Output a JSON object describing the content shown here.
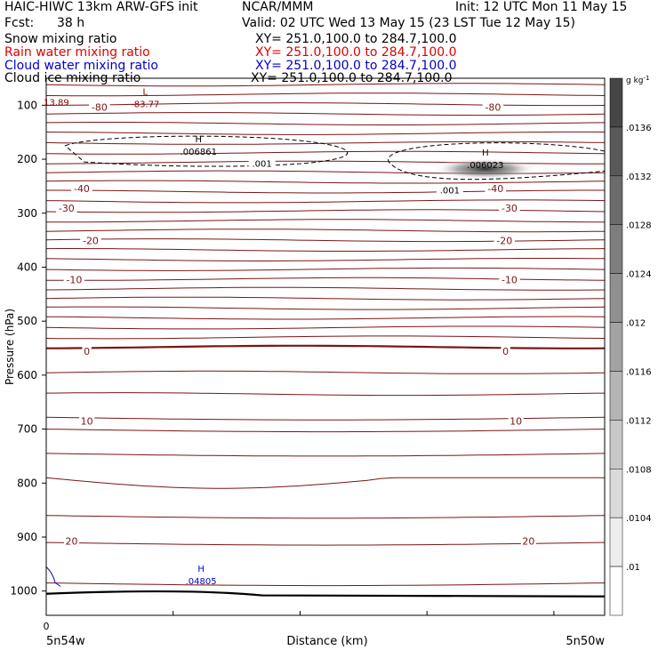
{
  "header": {
    "model": "HAIC-HIWC 13km ARW-GFS init",
    "center": "NCAR/MMM",
    "init": "Init: 12 UTC Mon 11 May 15",
    "fcst_label": "Fcst:",
    "fcst_value": "38 h",
    "valid": "Valid: 02 UTC Wed 13 May 15 (23 LST Tue 12 May 15)",
    "fields": [
      {
        "name": "Snow mixing ratio",
        "xy": "XY= 251.0,100.0 to 284.7,100.0",
        "color": "#000000"
      },
      {
        "name": "Rain water mixing ratio",
        "xy": "XY= 251.0,100.0 to 284.7,100.0",
        "color": "#dd0000"
      },
      {
        "name": "Cloud water mixing ratio",
        "xy": "XY= 251.0,100.0 to 284.7,100.0",
        "color": "#0000cc"
      },
      {
        "name": "Cloud ice mixing ratio",
        "xy": "XY= 251.0,100.0 to 284.7,100.0",
        "color": "#000000"
      }
    ]
  },
  "chart_data": {
    "type": "contour",
    "ylabel": "Pressure (hPa)",
    "xlabel": "Distance (km)",
    "x_left_label": "5n54w",
    "x_right_label": "5n50w",
    "x_zero_label": "0",
    "y_ticks": [
      100,
      200,
      300,
      400,
      500,
      600,
      700,
      800,
      900,
      1000
    ],
    "y_range": [
      50,
      1045
    ],
    "x_range": [
      0,
      4.4
    ],
    "x_ticks": [
      0,
      1,
      2,
      3,
      4
    ],
    "colorbar": {
      "unit": "g kg",
      "unit_sup": "-1",
      "labels": [
        ".0136",
        ".0132",
        ".0128",
        ".0124",
        ".012",
        ".0116",
        ".0112",
        ".0108",
        ".0104",
        ".01"
      ]
    },
    "temperature_contour_labels": [
      {
        "value": "-80",
        "x": 0.42,
        "p": 105
      },
      {
        "value": "-80",
        "x": 3.52,
        "p": 105
      },
      {
        "value": "-40",
        "x": 0.28,
        "p": 256
      },
      {
        "value": "-40",
        "x": 3.54,
        "p": 256
      },
      {
        "value": "-30",
        "x": 0.16,
        "p": 292
      },
      {
        "value": "-30",
        "x": 3.65,
        "p": 292
      },
      {
        "value": "-20",
        "x": 0.35,
        "p": 352
      },
      {
        "value": "-20",
        "x": 3.61,
        "p": 352
      },
      {
        "value": "-10",
        "x": 0.22,
        "p": 425
      },
      {
        "value": "-10",
        "x": 3.65,
        "p": 425
      },
      {
        "value": "0",
        "x": 0.32,
        "p": 557
      },
      {
        "value": "0",
        "x": 3.62,
        "p": 557
      },
      {
        "value": "10",
        "x": 0.32,
        "p": 687
      },
      {
        "value": "10",
        "x": 3.7,
        "p": 687
      },
      {
        "value": "20",
        "x": 0.2,
        "p": 909
      },
      {
        "value": "20",
        "x": 3.8,
        "p": 909
      }
    ],
    "extrema": [
      {
        "type": "L",
        "label_value": "-83.77",
        "x": 0.78,
        "p": 100,
        "color": "#8b0000"
      },
      {
        "type": "",
        "label_value": "13.89",
        "x": 0.08,
        "p": 97,
        "color": "#8b0000"
      },
      {
        "type": "H",
        "label_value": ".006861",
        "x": 1.2,
        "p": 188,
        "color": "#000000"
      },
      {
        "type": "H",
        "label_value": ".006023",
        "x": 3.46,
        "p": 213,
        "color": "#000000"
      },
      {
        "type": "H",
        "label_value": ".04805",
        "x": 1.22,
        "p": 984,
        "color": "#0000cc"
      }
    ],
    "contour_labels": [
      {
        "value": ".001",
        "x": 1.7,
        "p": 209
      },
      {
        "value": ".001",
        "x": 3.18,
        "p": 258
      }
    ]
  }
}
